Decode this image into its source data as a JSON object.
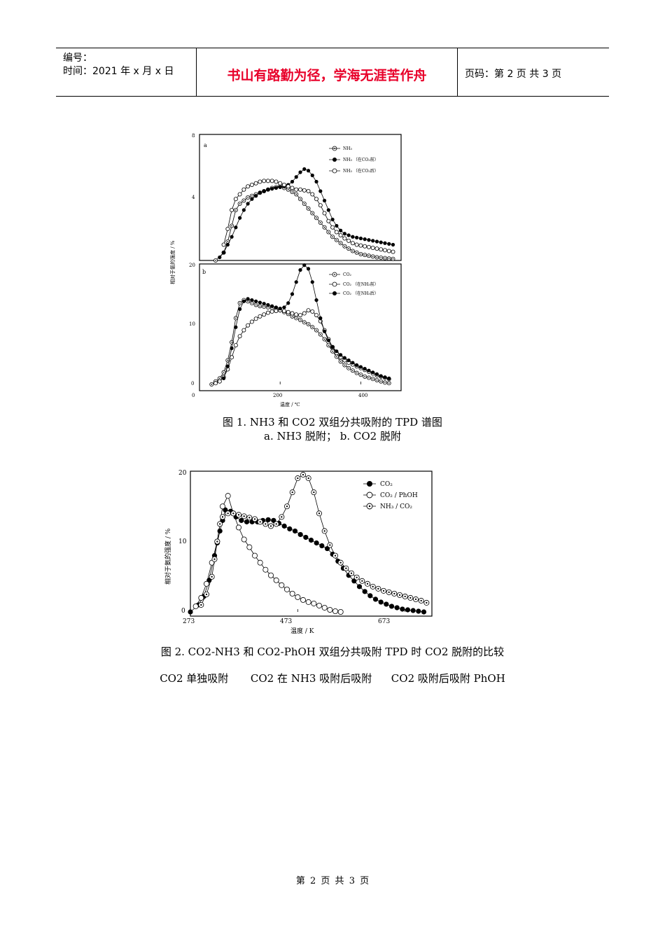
{
  "header": {
    "number_label": "编号：",
    "time_label": "时间：2021 年 x 月 x 日",
    "motto": "书山有路勤为径，学海无涯苦作舟",
    "page_label": "页码：第 2 页  共 3 页"
  },
  "figure1": {
    "caption_line1": "图 1. NH3 和 CO2 双组分共吸附的 TPD 谱图",
    "caption_line2": "a. NH3 脱附；  b. CO2 脱附",
    "ylabel": "相对于氨的强度 / %",
    "xlabel": "温度 / ℃",
    "panel_a": {
      "tag": "a",
      "yticks": [
        "8",
        "4"
      ],
      "legend": [
        "NH₃",
        "NH₃ （在CO₂前）",
        "NH₃ （在CO₂后）"
      ]
    },
    "panel_b": {
      "tag": "b",
      "yticks": [
        "20",
        "10",
        "0"
      ],
      "xticks": [
        "0",
        "200",
        "400"
      ],
      "legend": [
        "CO₂",
        "CO₂ （在NH₃前）",
        "CO₂ （在NH₃后）"
      ]
    }
  },
  "figure2": {
    "caption": "图 2. CO2-NH3 和 CO2-PhOH 双组分共吸附 TPD 时 CO2 脱附的比较",
    "sub_captions": [
      "CO2 单独吸附",
      "CO2 在 NH3 吸附后吸附",
      "CO2 吸附后吸附 PhOH"
    ],
    "ylabel": "相对于氨的强度 / %",
    "xlabel": "温度 / K",
    "yticks": [
      "20",
      "10",
      "0"
    ],
    "xticks": [
      "273",
      "473",
      "673"
    ],
    "legend": [
      "CO₂",
      "CO₂ / PhOH",
      "NH₃ / CO₂"
    ]
  },
  "footer": {
    "page": "第 2 页 共 3 页"
  },
  "chart_data": [
    {
      "type": "scatter",
      "title": "a",
      "xlabel": "温度 / ℃",
      "ylabel": "相对于氨的强度 / %",
      "xlim": [
        0,
        500
      ],
      "ylim": [
        0,
        8
      ],
      "series": [
        {
          "name": "NH₃",
          "marker": "dotted",
          "x": [
            40,
            60,
            70,
            80,
            90,
            100,
            110,
            120,
            130,
            140,
            150,
            160,
            170,
            180,
            190,
            200,
            210,
            220,
            230,
            240,
            250,
            260,
            270,
            280,
            290,
            300,
            310,
            320,
            330,
            340,
            350,
            360,
            370,
            380,
            390,
            400,
            410,
            420,
            430,
            440,
            450,
            460,
            470,
            480
          ],
          "y": [
            0,
            0.5,
            1.2,
            2.2,
            3.2,
            3.6,
            3.8,
            4,
            4.1,
            4.2,
            4.3,
            4.4,
            4.5,
            4.6,
            4.65,
            4.7,
            4.6,
            4.5,
            4.35,
            4.2,
            3.9,
            3.6,
            3.3,
            3,
            2.7,
            2.4,
            2.1,
            1.8,
            1.5,
            1.3,
            1.1,
            0.9,
            0.75,
            0.6,
            0.5,
            0.4,
            0.35,
            0.3,
            0.25,
            0.2,
            0.18,
            0.15,
            0.12,
            0.1
          ]
        },
        {
          "name": "NH₃ （在CO₂前）",
          "marker": "filled",
          "x": [
            50,
            60,
            70,
            80,
            90,
            100,
            110,
            120,
            130,
            140,
            150,
            160,
            170,
            180,
            190,
            200,
            210,
            220,
            230,
            240,
            250,
            260,
            270,
            280,
            290,
            300,
            310,
            320,
            330,
            340,
            350,
            360,
            370,
            380,
            390,
            400,
            410,
            420,
            430,
            440,
            450,
            460,
            470,
            480
          ],
          "y": [
            0.2,
            0.5,
            1,
            1.5,
            2.1,
            2.7,
            3.2,
            3.6,
            3.9,
            4.1,
            4.3,
            4.4,
            4.5,
            4.55,
            4.6,
            4.65,
            4.7,
            4.8,
            5,
            5.3,
            5.6,
            5.8,
            5.7,
            5.4,
            5,
            4.4,
            3.8,
            3.2,
            2.6,
            2.2,
            1.9,
            1.7,
            1.6,
            1.5,
            1.45,
            1.4,
            1.35,
            1.3,
            1.25,
            1.2,
            1.15,
            1.1,
            1.05,
            1
          ]
        },
        {
          "name": "NH₃ （在CO₂后）",
          "marker": "open",
          "x": [
            60,
            70,
            80,
            90,
            100,
            110,
            120,
            130,
            140,
            150,
            160,
            170,
            180,
            190,
            200,
            210,
            220,
            230,
            240,
            250,
            260,
            270,
            280,
            290,
            300,
            310,
            320,
            330,
            340,
            350,
            360,
            370,
            380,
            390,
            400,
            410,
            420,
            430,
            440,
            450,
            460,
            470,
            480
          ],
          "y": [
            1,
            2,
            3.2,
            3.9,
            4.2,
            4.5,
            4.7,
            4.8,
            4.9,
            5,
            5.05,
            5.05,
            5.05,
            5,
            4.9,
            4.8,
            4.7,
            4.6,
            4.5,
            4.5,
            4.45,
            4.4,
            4.2,
            3.9,
            3.5,
            3,
            2.5,
            2.1,
            1.8,
            1.6,
            1.4,
            1.25,
            1.1,
            1,
            0.95,
            0.9,
            0.85,
            0.8,
            0.75,
            0.7,
            0.65,
            0.6,
            0.55
          ]
        }
      ]
    },
    {
      "type": "scatter",
      "title": "b",
      "xlabel": "温度 / ℃",
      "ylabel": "相对于氨的强度 / %",
      "xlim": [
        0,
        500
      ],
      "ylim": [
        0,
        20
      ],
      "xticks": [
        0,
        200,
        400
      ],
      "series": [
        {
          "name": "CO₂",
          "marker": "dotted",
          "x": [
            30,
            40,
            50,
            60,
            70,
            80,
            90,
            100,
            110,
            120,
            130,
            140,
            150,
            160,
            170,
            180,
            190,
            200,
            210,
            220,
            230,
            240,
            250,
            260,
            270,
            280,
            290,
            300,
            310,
            320,
            330,
            340,
            350,
            360,
            370,
            380,
            390,
            400,
            410,
            420,
            430,
            440,
            450,
            460,
            470
          ],
          "y": [
            0,
            0.5,
            1,
            2,
            4,
            7,
            11,
            13.5,
            14,
            13.8,
            13.5,
            13.2,
            13,
            12.9,
            12.8,
            12.7,
            12.5,
            12.3,
            12,
            11.7,
            11.3,
            11,
            10.7,
            10.3,
            10,
            9.5,
            9,
            8.3,
            7.5,
            6.5,
            5.5,
            4.6,
            3.8,
            3.2,
            2.7,
            2.3,
            1.9,
            1.6,
            1.3,
            1.1,
            0.9,
            0.7,
            0.5,
            0.3,
            0.2
          ]
        },
        {
          "name": "CO₂ （在NH₃前）",
          "marker": "open",
          "x": [
            40,
            50,
            60,
            70,
            80,
            90,
            100,
            110,
            120,
            130,
            140,
            150,
            160,
            170,
            180,
            190,
            200,
            210,
            220,
            230,
            240,
            250,
            260,
            270,
            280,
            290,
            300,
            310,
            320,
            330,
            340,
            350,
            360,
            370,
            380,
            390,
            400,
            410,
            420,
            430,
            440,
            450,
            460,
            470
          ],
          "y": [
            0.2,
            0.5,
            1.2,
            2.5,
            4.5,
            6.5,
            8,
            9,
            9.8,
            10.4,
            10.9,
            11.3,
            11.6,
            11.9,
            12.1,
            12.2,
            12.3,
            12.2,
            12,
            11.8,
            11.6,
            11.5,
            11.8,
            12.3,
            12.1,
            11.5,
            10.5,
            9,
            7.5,
            6.2,
            5.2,
            4.5,
            4,
            3.6,
            3.3,
            3,
            2.7,
            2.4,
            2.1,
            1.8,
            1.5,
            1.3,
            1.1,
            0.9
          ]
        },
        {
          "name": "CO₂ （在NH₃后）",
          "marker": "filled",
          "x": [
            60,
            70,
            80,
            90,
            100,
            110,
            120,
            130,
            140,
            150,
            160,
            170,
            180,
            190,
            200,
            210,
            220,
            230,
            240,
            250,
            260,
            270,
            280,
            290,
            300,
            310,
            320,
            330,
            340,
            350,
            360,
            370,
            380,
            390,
            400,
            410,
            420,
            430,
            440,
            450,
            460,
            470
          ],
          "y": [
            1,
            3,
            6,
            9.5,
            12.5,
            13.8,
            14.2,
            14,
            13.8,
            13.6,
            13.4,
            13.2,
            13,
            12.8,
            12.6,
            12.8,
            13.5,
            15,
            17,
            19,
            19.8,
            19.2,
            17,
            14,
            11,
            8.8,
            7.3,
            6.2,
            5.5,
            4.9,
            4.4,
            4,
            3.6,
            3.2,
            2.9,
            2.6,
            2.3,
            2,
            1.7,
            1.4,
            1.2,
            1
          ]
        }
      ]
    },
    {
      "type": "scatter",
      "title": "",
      "xlabel": "温度 / K",
      "ylabel": "相对于氨的强度 / %",
      "xlim": [
        273,
        723
      ],
      "ylim": [
        0,
        20
      ],
      "xticks": [
        273,
        473,
        673
      ],
      "series": [
        {
          "name": "CO₂",
          "marker": "filled",
          "x": [
            273,
            288,
            298,
            308,
            318,
            323,
            328,
            333,
            338,
            348,
            358,
            368,
            378,
            388,
            398,
            408,
            418,
            428,
            438,
            448,
            458,
            468,
            478,
            488,
            498,
            508,
            518,
            528,
            538,
            548,
            558,
            568,
            578,
            588,
            598,
            608,
            618,
            628,
            638,
            648,
            658,
            668,
            678,
            688,
            698,
            708
          ],
          "y": [
            0,
            1,
            2.2,
            4.5,
            8,
            9.8,
            11.5,
            13,
            14.5,
            14.3,
            13.5,
            13,
            12.8,
            12.8,
            12.8,
            13,
            13.1,
            13,
            12.6,
            12.2,
            11.8,
            11.5,
            11,
            10.6,
            10.2,
            9.8,
            9.4,
            9,
            8.2,
            7.2,
            6.2,
            5.2,
            4.4,
            3.6,
            2.9,
            2.3,
            1.8,
            1.4,
            1.1,
            0.8,
            0.6,
            0.4,
            0.3,
            0.2,
            0.1,
            0
          ]
        },
        {
          "name": "CO₂ / PhOH",
          "marker": "open",
          "x": [
            283,
            293,
            303,
            313,
            323,
            333,
            343,
            353,
            363,
            373,
            383,
            393,
            403,
            413,
            423,
            433,
            443,
            453,
            463,
            473,
            483,
            493,
            503,
            513,
            523,
            533,
            543,
            553
          ],
          "y": [
            0.8,
            2,
            4,
            7,
            10,
            15,
            16.5,
            14,
            12,
            10.3,
            9.2,
            8,
            7,
            6,
            5.2,
            4.5,
            3.8,
            3.2,
            2.6,
            2.1,
            1.7,
            1.4,
            1.2,
            0.9,
            0.6,
            0.3,
            0.1,
            0
          ]
        },
        {
          "name": "NH₃ / CO₂",
          "marker": "dotted",
          "x": [
            293,
            303,
            313,
            318,
            323,
            328,
            333,
            343,
            353,
            363,
            373,
            383,
            393,
            403,
            413,
            423,
            433,
            443,
            453,
            463,
            473,
            483,
            493,
            503,
            513,
            523,
            533,
            543,
            553,
            563,
            573,
            583,
            593,
            603,
            613,
            623,
            633,
            643,
            653,
            663,
            673,
            683,
            693,
            703,
            713
          ],
          "y": [
            1,
            2.5,
            5,
            7.5,
            10,
            12.5,
            13.5,
            14,
            14,
            13.8,
            13.6,
            13.4,
            13.2,
            12.8,
            12.5,
            12.2,
            12.5,
            13.5,
            15,
            17,
            19,
            19.5,
            19,
            17,
            14,
            11.5,
            9.5,
            8,
            7,
            6.2,
            5.5,
            4.9,
            4.4,
            4,
            3.6,
            3.3,
            3,
            2.8,
            2.6,
            2.4,
            2.2,
            2,
            1.8,
            1.6,
            1.3
          ]
        }
      ]
    }
  ]
}
